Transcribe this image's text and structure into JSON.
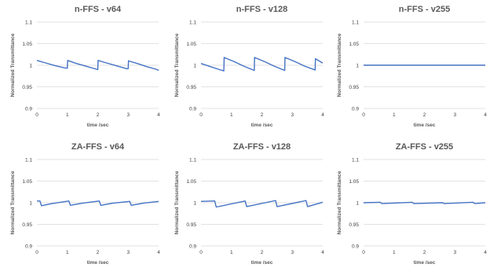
{
  "chart_data": [
    {
      "type": "line",
      "title": "n-FFS - v64",
      "xlabel": "time /sec",
      "ylabel": "Normalized Transmittance",
      "xlim": [
        0,
        4
      ],
      "ylim": [
        0.9,
        1.1
      ],
      "xticks": [
        "0",
        "1",
        "2",
        "3",
        "4"
      ],
      "yticks": [
        "0.9",
        "0.95",
        "1",
        "1.05",
        "1.1"
      ],
      "grid": true,
      "series": [
        {
          "color": "#4472c4",
          "x": [
            0,
            0.3,
            0.6,
            0.9,
            1.0,
            1.01,
            1.3,
            1.6,
            1.99,
            2.0,
            2.01,
            2.3,
            2.6,
            2.95,
            3.0,
            3.01,
            3.3,
            3.6,
            3.95,
            4.0
          ],
          "y": [
            1.011,
            1.005,
            0.999,
            0.994,
            0.993,
            1.011,
            1.004,
            0.998,
            0.99,
            0.99,
            1.011,
            1.005,
            0.999,
            0.992,
            0.992,
            1.01,
            1.004,
            0.997,
            0.99,
            0.988
          ]
        }
      ]
    },
    {
      "type": "line",
      "title": "n-FFS - v128",
      "xlabel": "time /sec",
      "ylabel": "Normalized Transmittance",
      "xlim": [
        0,
        4
      ],
      "ylim": [
        0.9,
        1.1
      ],
      "xticks": [
        "0",
        "1",
        "2",
        "3",
        "4"
      ],
      "yticks": [
        "0.9",
        "0.95",
        "1",
        "1.05",
        "1.1"
      ],
      "grid": true,
      "series": [
        {
          "color": "#4472c4",
          "x": [
            0,
            0.3,
            0.6,
            0.75,
            0.76,
            1.1,
            1.4,
            1.75,
            1.76,
            2.1,
            2.4,
            2.75,
            2.76,
            3.1,
            3.4,
            3.75,
            3.76,
            4.0
          ],
          "y": [
            1.004,
            0.997,
            0.99,
            0.987,
            1.018,
            1.008,
            0.998,
            0.988,
            1.018,
            1.008,
            0.998,
            0.988,
            1.018,
            1.008,
            0.998,
            0.989,
            1.015,
            1.005
          ]
        }
      ]
    },
    {
      "type": "line",
      "title": "n-FFS - v255",
      "xlabel": "time /sec",
      "ylabel": "Normalized Transmittance",
      "xlim": [
        0,
        4
      ],
      "ylim": [
        0.9,
        1.1
      ],
      "xticks": [
        "0",
        "1",
        "2",
        "3",
        "4"
      ],
      "yticks": [
        "0.9",
        "0.95",
        "1",
        "1.05",
        "1.1"
      ],
      "grid": true,
      "series": [
        {
          "color": "#4472c4",
          "x": [
            0,
            1,
            2,
            3,
            4
          ],
          "y": [
            1.0,
            1.0,
            1.0,
            1.0,
            1.0
          ]
        }
      ]
    },
    {
      "type": "line",
      "title": "ZA-FFS - v64",
      "xlabel": "time /sec",
      "ylabel": "Normalized Transmittance",
      "xlim": [
        0,
        4
      ],
      "ylim": [
        0.9,
        1.1
      ],
      "xticks": [
        "0",
        "1",
        "2",
        "3",
        "4"
      ],
      "yticks": [
        "0.9",
        "0.95",
        "1",
        "1.05",
        "1.1"
      ],
      "grid": true,
      "series": [
        {
          "color": "#4472c4",
          "x": [
            0,
            0.1,
            0.15,
            0.5,
            1.05,
            1.1,
            1.5,
            2.05,
            2.1,
            2.5,
            3.05,
            3.1,
            3.5,
            4.0
          ],
          "y": [
            1.004,
            1.004,
            0.993,
            0.998,
            1.004,
            0.994,
            0.999,
            1.004,
            0.994,
            0.999,
            1.003,
            0.994,
            0.999,
            1.003
          ]
        }
      ]
    },
    {
      "type": "line",
      "title": "ZA-FFS - v128",
      "xlabel": "time /sec",
      "ylabel": "Normalized Transmittance",
      "xlim": [
        0,
        4
      ],
      "ylim": [
        0.9,
        1.1
      ],
      "xticks": [
        "0",
        "1",
        "2",
        "3",
        "4"
      ],
      "yticks": [
        "0.9",
        "0.95",
        "1",
        "1.05",
        "1.1"
      ],
      "grid": true,
      "series": [
        {
          "color": "#4472c4",
          "x": [
            0,
            0.45,
            0.5,
            1.45,
            1.5,
            2.45,
            2.5,
            3.45,
            3.5,
            4.0
          ],
          "y": [
            1.003,
            1.004,
            0.99,
            1.004,
            0.991,
            1.005,
            0.991,
            1.005,
            0.991,
            1.001
          ]
        }
      ]
    },
    {
      "type": "line",
      "title": "ZA-FFS - v255",
      "xlabel": "time /sec",
      "ylabel": "Normalized Transmittance",
      "xlim": [
        0,
        4
      ],
      "ylim": [
        0.9,
        1.1
      ],
      "xticks": [
        "0",
        "1",
        "2",
        "3",
        "4"
      ],
      "yticks": [
        "0.9",
        "0.95",
        "1",
        "1.05",
        "1.1"
      ],
      "grid": true,
      "series": [
        {
          "color": "#4472c4",
          "x": [
            0,
            0.55,
            0.6,
            1.6,
            1.65,
            2.6,
            2.65,
            3.6,
            3.65,
            4.0
          ],
          "y": [
            1.0,
            1.001,
            0.998,
            1.001,
            0.998,
            1.0,
            0.998,
            1.001,
            0.998,
            1.0
          ]
        }
      ]
    }
  ]
}
